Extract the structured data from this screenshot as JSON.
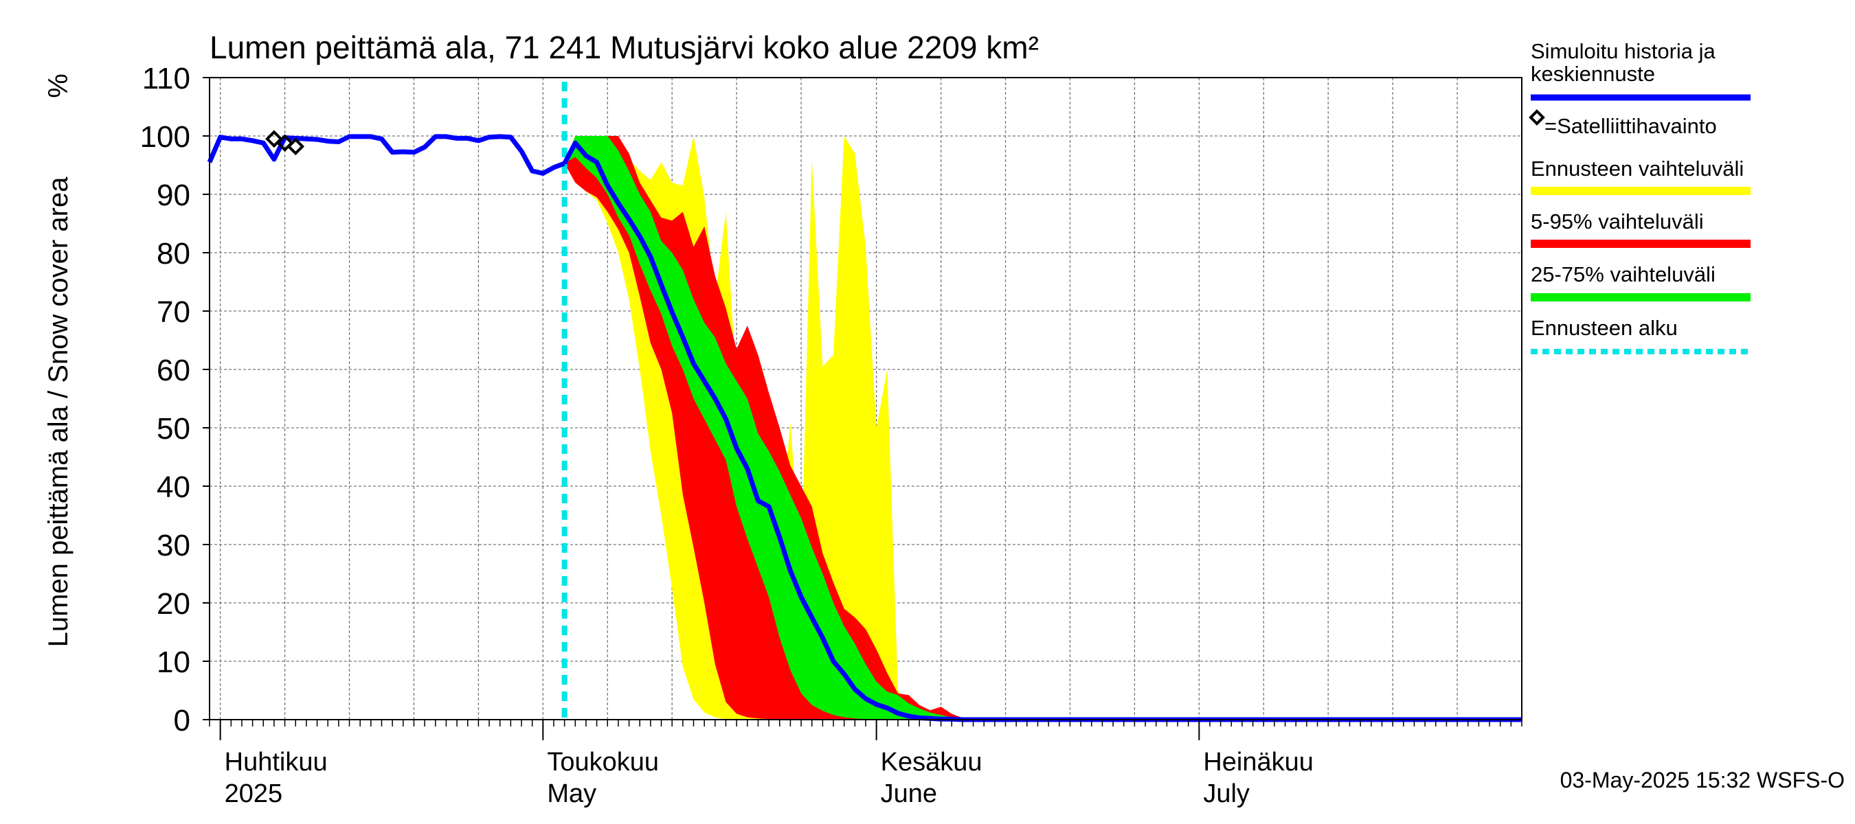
{
  "chart_data": {
    "type": "area",
    "title": "Lumen peittämä ala, 71 241 Mutusjärvi koko alue 2209 km²",
    "ylabel": "Lumen peittämä ala / Snow cover area",
    "yunit": "%",
    "ylim": [
      0,
      110
    ],
    "yticks": [
      0,
      10,
      20,
      30,
      40,
      50,
      60,
      70,
      80,
      90,
      100,
      110
    ],
    "xlim": [
      "2025-03-31",
      "2025-07-31"
    ],
    "grid": true,
    "forecast_start": "2025-05-03",
    "month_labels": [
      {
        "date": "2025-04-01",
        "fi": "Huhtikuu",
        "en": "2025"
      },
      {
        "date": "2025-05-01",
        "fi": "Toukokuu",
        "en": "May"
      },
      {
        "date": "2025-06-01",
        "fi": "Kesäkuu",
        "en": "June"
      },
      {
        "date": "2025-07-01",
        "fi": "Heinäkuu",
        "en": "July"
      }
    ],
    "footer": "03-May-2025 15:32 WSFS-O",
    "legend": {
      "placement": "right",
      "entries": [
        {
          "label": "Simuloitu historia ja keskiennuste",
          "color": "#0000ff",
          "kind": "line"
        },
        {
          "label": "=Satelliittihavainto",
          "color": "#000000",
          "kind": "diamond"
        },
        {
          "label": "Ennusteen vaihteluväli",
          "color": "#ffff00",
          "kind": "band"
        },
        {
          "label": "5-95% vaihteluväli",
          "color": "#ff0000",
          "kind": "band"
        },
        {
          "label": "25-75% vaihteluväli",
          "color": "#00ee00",
          "kind": "band"
        },
        {
          "label": "Ennusteen alku",
          "color": "#00e5e5",
          "kind": "dashed"
        }
      ]
    },
    "history": {
      "x": [
        "2025-03-31",
        "2025-04-01",
        "2025-04-02",
        "2025-04-03",
        "2025-04-04",
        "2025-04-05",
        "2025-04-06",
        "2025-04-07",
        "2025-04-08",
        "2025-04-09",
        "2025-04-10",
        "2025-04-11",
        "2025-04-12",
        "2025-04-13",
        "2025-04-14",
        "2025-04-15",
        "2025-04-16",
        "2025-04-17",
        "2025-04-18",
        "2025-04-19",
        "2025-04-20",
        "2025-04-21",
        "2025-04-22",
        "2025-04-23",
        "2025-04-24",
        "2025-04-25",
        "2025-04-26",
        "2025-04-27",
        "2025-04-28",
        "2025-04-29",
        "2025-04-30",
        "2025-05-01",
        "2025-05-02",
        "2025-05-03"
      ],
      "y": [
        95.5,
        99.8,
        99.5,
        99.5,
        99.2,
        98.8,
        96.0,
        99.7,
        99.6,
        99.5,
        99.4,
        99.1,
        99.0,
        99.9,
        99.9,
        99.9,
        99.5,
        97.2,
        97.3,
        97.2,
        98.1,
        99.9,
        99.9,
        99.6,
        99.6,
        99.2,
        99.8,
        99.9,
        99.8,
        97.4,
        94.0,
        93.6,
        94.6,
        95.3
      ]
    },
    "forecast": {
      "x": [
        "2025-05-03",
        "2025-05-04",
        "2025-05-05",
        "2025-05-06",
        "2025-05-07",
        "2025-05-08",
        "2025-05-09",
        "2025-05-10",
        "2025-05-11",
        "2025-05-12",
        "2025-05-13",
        "2025-05-14",
        "2025-05-15",
        "2025-05-16",
        "2025-05-17",
        "2025-05-18",
        "2025-05-19",
        "2025-05-20",
        "2025-05-21",
        "2025-05-22",
        "2025-05-23",
        "2025-05-24",
        "2025-05-25",
        "2025-05-26",
        "2025-05-27",
        "2025-05-28",
        "2025-05-29",
        "2025-05-30",
        "2025-05-31",
        "2025-06-01",
        "2025-06-02",
        "2025-06-03",
        "2025-06-04",
        "2025-06-05",
        "2025-06-06",
        "2025-06-07",
        "2025-06-08",
        "2025-06-09",
        "2025-06-10",
        "2025-06-11",
        "2025-06-12",
        "2025-06-13",
        "2025-06-14",
        "2025-06-15",
        "2025-07-31"
      ],
      "median": [
        95.3,
        98.8,
        96.6,
        95.5,
        91.5,
        88.5,
        85.7,
        82.8,
        79.3,
        74.5,
        69.8,
        65.5,
        61.0,
        58.0,
        55.0,
        51.5,
        46.5,
        43.0,
        37.5,
        36.5,
        31.2,
        25.5,
        21.0,
        17.5,
        14.0,
        10.0,
        7.8,
        5.2,
        3.6,
        2.6,
        2.0,
        1.1,
        0.6,
        0.3,
        0.2,
        0.1,
        0.1,
        0,
        0,
        0,
        0,
        0,
        0,
        0,
        0
      ],
      "p25": [
        95.3,
        96.4,
        94.5,
        92.8,
        90.0,
        86.0,
        83.0,
        78.0,
        73.5,
        69.5,
        64.0,
        60.0,
        55.0,
        51.5,
        48.0,
        44.5,
        36.5,
        31.0,
        26.0,
        21.0,
        14.0,
        8.5,
        4.5,
        2.5,
        1.5,
        0.8,
        0.4,
        0.2,
        0.1,
        0,
        0,
        0,
        0,
        0,
        0,
        0,
        0,
        0,
        0,
        0,
        0,
        0,
        0,
        0,
        0
      ],
      "p75": [
        95.3,
        100,
        100,
        100,
        100,
        97.5,
        94.0,
        90.0,
        87.0,
        82.0,
        80.0,
        77.0,
        72.0,
        68.0,
        65.5,
        61.0,
        58.0,
        55.0,
        49.0,
        46.0,
        42.5,
        38.5,
        34.5,
        29.5,
        25.0,
        20.0,
        16.0,
        13.0,
        9.5,
        6.5,
        4.8,
        4.2,
        2.8,
        1.9,
        1.2,
        0.8,
        0.4,
        0.2,
        0.1,
        0,
        0,
        0,
        0,
        0,
        0
      ],
      "p5": [
        95.3,
        92.0,
        90.5,
        89.5,
        87.0,
        84.0,
        80.0,
        72.5,
        64.5,
        60.0,
        52.5,
        38.5,
        29.5,
        20.0,
        9.5,
        3.0,
        1.0,
        0.4,
        0.2,
        0.1,
        0,
        0,
        0,
        0,
        0,
        0,
        0,
        0,
        0,
        0,
        0,
        0,
        0,
        0,
        0,
        0,
        0,
        0,
        0,
        0,
        0,
        0,
        0,
        0,
        0
      ],
      "p95": [
        95.3,
        100,
        100,
        100,
        100,
        100,
        97.0,
        92.0,
        89.0,
        86.0,
        85.5,
        87.0,
        81.0,
        84.5,
        76.0,
        70.5,
        63.5,
        67.5,
        62.5,
        56.0,
        50.0,
        43.5,
        40.0,
        36.5,
        28.5,
        23.5,
        19.0,
        17.5,
        15.5,
        12.0,
        8.0,
        4.5,
        4.2,
        2.5,
        1.6,
        2.2,
        1.0,
        0.3,
        0.1,
        0,
        0,
        0,
        0,
        0,
        0
      ],
      "min": [
        95.3,
        92.0,
        90.5,
        89.0,
        85.0,
        80.0,
        72.0,
        60.0,
        46.0,
        35.0,
        22.5,
        9.0,
        3.5,
        1.2,
        0.4,
        0.1,
        0,
        0,
        0,
        0,
        0,
        0,
        0,
        0,
        0,
        0,
        0,
        0,
        0,
        0,
        0,
        0,
        0,
        0,
        0,
        0,
        0,
        0,
        0,
        0,
        0,
        0,
        0,
        0,
        0
      ],
      "max": [
        95.3,
        100,
        100,
        100,
        100,
        100,
        96.0,
        94.0,
        92.5,
        95.5,
        92.0,
        91.5,
        100,
        89.5,
        72.0,
        87.0,
        57.0,
        53.0,
        46.0,
        40.0,
        29.0,
        51.0,
        25.0,
        96.0,
        60.5,
        62.5,
        100,
        97.0,
        81.0,
        50.0,
        60.0,
        5.0,
        1.8,
        0.5,
        0.2,
        0.1,
        0,
        0,
        0,
        0,
        0,
        0,
        0,
        0,
        0
      ]
    },
    "satellite_observations": {
      "x": [
        "2025-04-06",
        "2025-04-07",
        "2025-04-08"
      ],
      "y": [
        99.5,
        98.8,
        98.2
      ]
    }
  }
}
